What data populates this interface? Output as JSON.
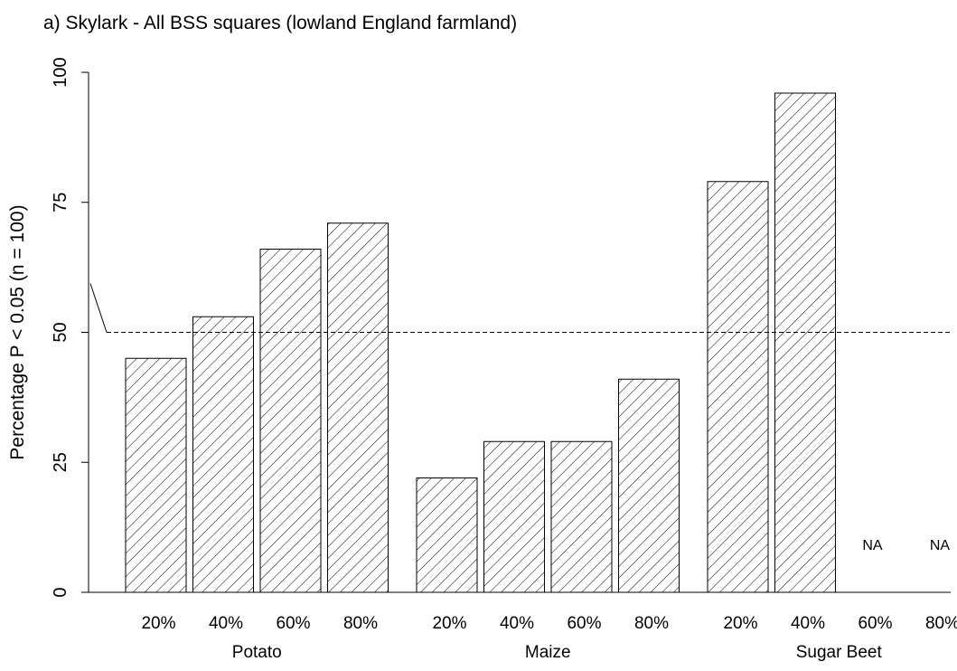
{
  "chart_data": {
    "type": "bar",
    "title": "a) Skylark - All BSS squares (lowland England farmland)",
    "ylabel": "Percentage P < 0.05 (n = 100)",
    "xlabel": "",
    "ylim": [
      0,
      100
    ],
    "yticks": [
      0,
      25,
      50,
      75,
      100
    ],
    "reference_line": 50,
    "bar_fill": "diagonal hatch",
    "groups": [
      {
        "name": "Potato",
        "bars": [
          {
            "label": "20%",
            "value": 45
          },
          {
            "label": "40%",
            "value": 53
          },
          {
            "label": "60%",
            "value": 66
          },
          {
            "label": "80%",
            "value": 71
          }
        ]
      },
      {
        "name": "Maize",
        "bars": [
          {
            "label": "20%",
            "value": 22
          },
          {
            "label": "40%",
            "value": 29
          },
          {
            "label": "60%",
            "value": 29
          },
          {
            "label": "80%",
            "value": 41
          }
        ]
      },
      {
        "name": "Sugar Beet",
        "bars": [
          {
            "label": "20%",
            "value": 79
          },
          {
            "label": "40%",
            "value": 96
          },
          {
            "label": "60%",
            "value": null,
            "annotation": "NA"
          },
          {
            "label": "80%",
            "value": null,
            "annotation": "NA"
          }
        ]
      }
    ]
  }
}
